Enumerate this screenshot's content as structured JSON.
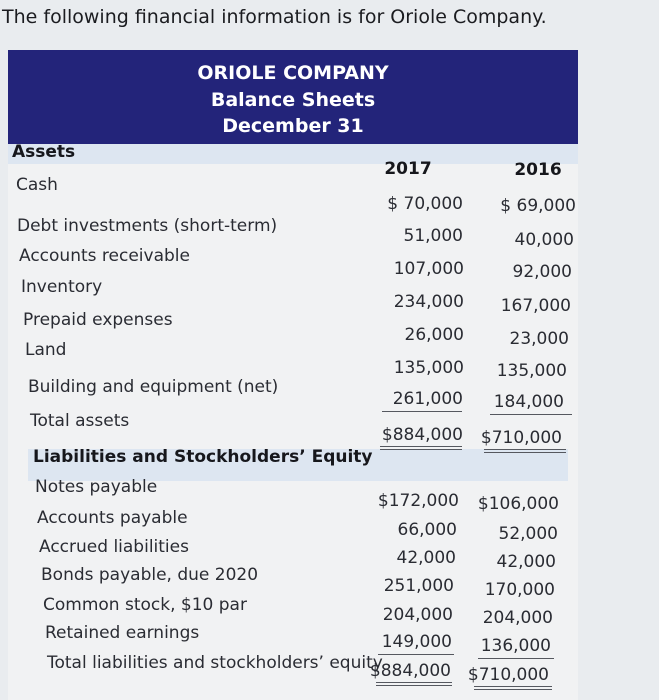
{
  "intro_text": "The following financial information is for Oriole Company.",
  "header": {
    "company": "ORIOLE COMPANY",
    "statement": "Balance Sheets",
    "date": "December 31"
  },
  "assets": {
    "heading": "Assets",
    "year_2017": "2017",
    "year_2016": "2016",
    "rows": [
      {
        "label": "Cash",
        "v2017": "$ 70,000",
        "v2016": "$ 69,000"
      },
      {
        "label": "Debt investments (short-term)",
        "v2017": "51,000",
        "v2016": "40,000"
      },
      {
        "label": "Accounts receivable",
        "v2017": "107,000",
        "v2016": "92,000"
      },
      {
        "label": "Inventory",
        "v2017": "234,000",
        "v2016": "167,000"
      },
      {
        "label": "Prepaid expenses",
        "v2017": "26,000",
        "v2016": "23,000"
      },
      {
        "label": "Land",
        "v2017": "135,000",
        "v2016": "135,000"
      },
      {
        "label": "Building and equipment (net)",
        "v2017": "261,000",
        "v2016": "184,000"
      },
      {
        "label": "Total assets",
        "v2017": "$884,000",
        "v2016": "$710,000"
      }
    ]
  },
  "liabilities": {
    "heading": "Liabilities and Stockholders’ Equity",
    "rows": [
      {
        "label": "Notes payable",
        "v2017": "$172,000",
        "v2016": "$106,000"
      },
      {
        "label": "Accounts payable",
        "v2017": "66,000",
        "v2016": "52,000"
      },
      {
        "label": "Accrued liabilities",
        "v2017": "42,000",
        "v2016": "42,000"
      },
      {
        "label": "Bonds payable, due 2020",
        "v2017": "251,000",
        "v2016": "170,000"
      },
      {
        "label": "Common stock, $10 par",
        "v2017": "204,000",
        "v2016": "204,000"
      },
      {
        "label": "Retained earnings",
        "v2017": "149,000",
        "v2016": "136,000"
      },
      {
        "label": "Total liabilities and stockholders’ equity",
        "v2017": "$884,000",
        "v2016": "$710,000"
      }
    ]
  }
}
